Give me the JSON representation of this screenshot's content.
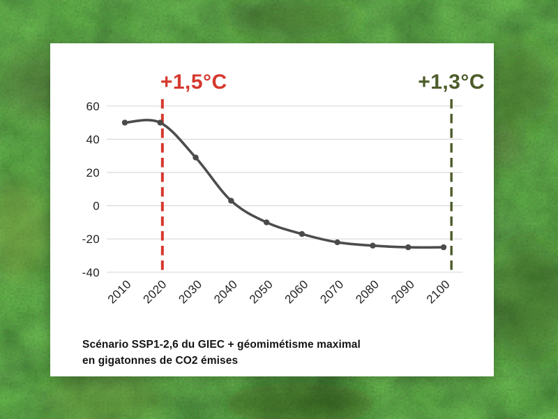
{
  "background": {
    "description": "aerial photograph of dense forest canopy",
    "base_color": "#1c2a14"
  },
  "card": {
    "background_color": "#ffffff"
  },
  "chart_data": {
    "type": "line",
    "title": "",
    "xlabel": "",
    "ylabel": "",
    "categories": [
      "2010",
      "2020",
      "2030",
      "2040",
      "2050",
      "2060",
      "2070",
      "2080",
      "2090",
      "2100"
    ],
    "values": [
      50,
      50,
      29,
      3,
      -10,
      -17,
      -22,
      -24,
      -25,
      -25
    ],
    "ylim": [
      -40,
      60
    ],
    "yticks": [
      60,
      40,
      20,
      0,
      -20,
      -40
    ],
    "grid": true,
    "grid_color": "#dadada",
    "line_color": "#4d4d4d",
    "marker_color": "#4a4a4a",
    "legend": "none",
    "annotations": [
      {
        "label": "+1,5°C",
        "year": 2020.6,
        "color": "#d6392e",
        "style": "dashed-vertical"
      },
      {
        "label": "+1,3°C",
        "year": 2102.2,
        "color": "#4d5c2a",
        "style": "dashed-vertical"
      }
    ],
    "caption_line1": "Scénario SSP1-2,6 du GIEC + géomimétisme maximal",
    "caption_line2": "en gigatonnes de CO2 émises"
  }
}
